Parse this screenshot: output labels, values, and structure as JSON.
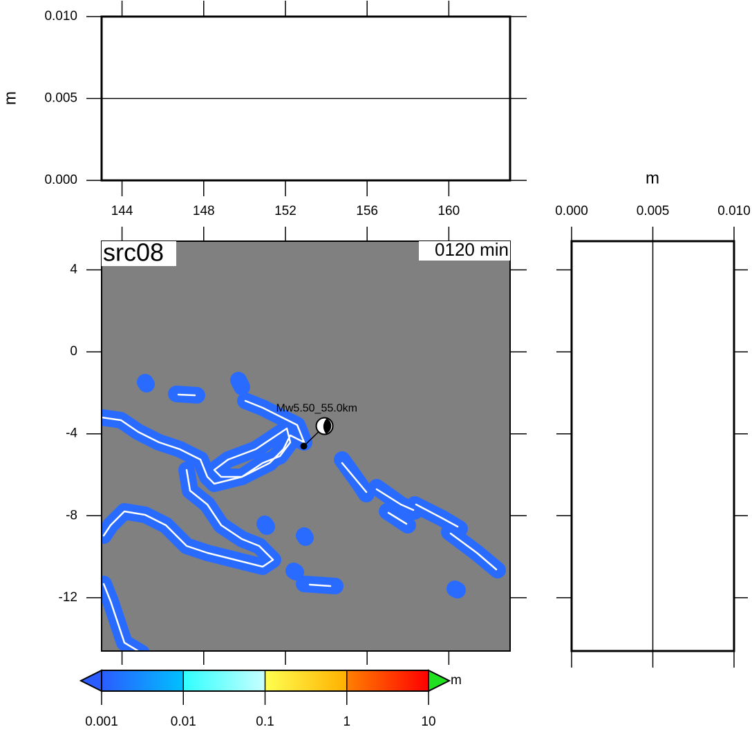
{
  "header": {
    "title": "src08",
    "time": "0120 min"
  },
  "top_panel": {
    "ylabel": "m",
    "ylim": [
      0,
      0.01
    ],
    "yticks": [
      {
        "value": 0,
        "label": "0.000"
      },
      {
        "value": 0.005,
        "label": "0.005"
      },
      {
        "value": 0.01,
        "label": "0.010"
      }
    ],
    "xlim": [
      143,
      163
    ],
    "xticks": [
      144,
      148,
      152,
      156,
      160
    ]
  },
  "map": {
    "xlim": [
      143,
      163
    ],
    "ylim": [
      -14.6,
      5.4
    ],
    "yticks": [
      4,
      0,
      -4,
      -8,
      -12
    ],
    "event": {
      "label": "Mw5.50_55.0km",
      "lon": 152.9,
      "lat": -4.6
    }
  },
  "right_panel": {
    "xlabel": "m",
    "xlim": [
      0,
      0.01
    ],
    "xticks": [
      {
        "value": 0,
        "label": "0.000"
      },
      {
        "value": 0.005,
        "label": "0.005"
      },
      {
        "value": 0.01,
        "label": "0.010"
      }
    ]
  },
  "colorbar": {
    "unit": "m",
    "log_scale": true,
    "lim": [
      0.001,
      10
    ],
    "ticks": [
      0.001,
      0.01,
      0.1,
      1,
      10
    ],
    "colors": [
      "#2a5cff",
      "#00c0ff",
      "#30ffff",
      "#c8ffff",
      "#ffff50",
      "#ffb000",
      "#ff8000",
      "#ff0000"
    ],
    "under_color": "#2a5cff",
    "over_color": "#20e020"
  }
}
